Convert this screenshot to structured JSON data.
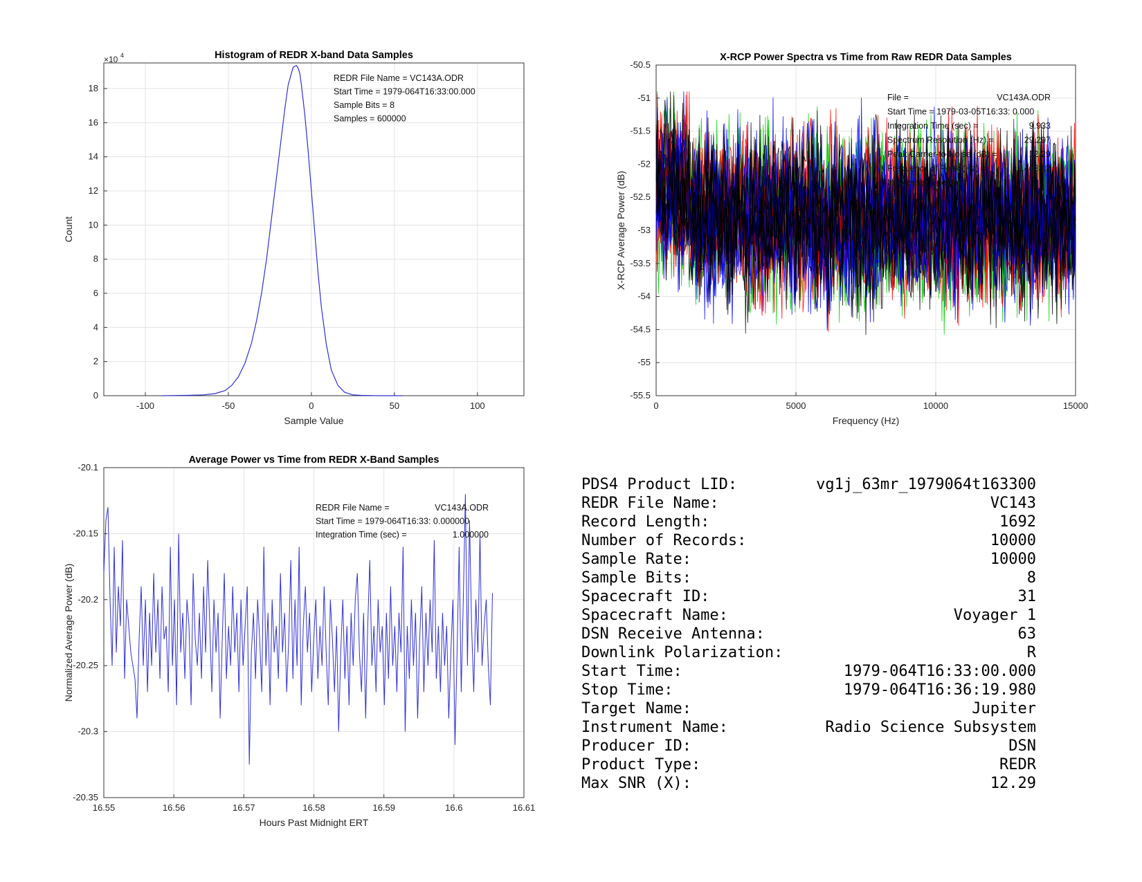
{
  "chart_data": [
    {
      "type": "line",
      "title": "Histogram of REDR X-band Data Samples",
      "xlabel": "Sample Value",
      "ylabel": "Count",
      "y_exponent_label": "×10",
      "y_exponent": "4",
      "xlim": [
        -125,
        128
      ],
      "ylim": [
        0,
        19.5
      ],
      "xticks": [
        -100,
        -50,
        0,
        50,
        100
      ],
      "yticks": [
        0,
        2,
        4,
        6,
        8,
        10,
        12,
        14,
        16,
        18
      ],
      "grid": true,
      "line_color": "#2f2fd0",
      "curve": {
        "x": [
          -90,
          -75,
          -65,
          -58,
          -52,
          -48,
          -44,
          -40,
          -36,
          -33,
          -30,
          -27,
          -24,
          -21,
          -18,
          -16,
          -14,
          -12,
          -11,
          -10,
          -9,
          -8,
          -7,
          -6,
          -4,
          -2,
          0,
          2,
          4,
          6,
          9,
          12,
          16,
          20,
          25,
          30,
          40,
          55
        ],
        "y": [
          0,
          0.02,
          0.05,
          0.12,
          0.3,
          0.6,
          1.1,
          1.9,
          3.1,
          4.4,
          6.0,
          8.0,
          10.4,
          12.8,
          15.2,
          16.8,
          18.2,
          18.9,
          19.25,
          19.3,
          19.35,
          19.2,
          18.9,
          18.2,
          16.5,
          14.4,
          12.0,
          9.6,
          7.2,
          5.2,
          3.0,
          1.5,
          0.6,
          0.2,
          0.05,
          0.02,
          0,
          0
        ]
      },
      "annotations": [
        "REDR File Name = VC143A.ODR",
        "Start Time = 1979-064T16:33:00.000",
        "Sample Bits = 8",
        "Samples = 600000"
      ]
    },
    {
      "type": "line",
      "title": "X-RCP Power Spectra vs Time from Raw REDR Data Samples",
      "xlabel": "Frequency (Hz)",
      "ylabel": "X-RCP Average Power (dB)",
      "xlim": [
        0,
        15000
      ],
      "ylim": [
        -55.5,
        -50.5
      ],
      "xticks": [
        0,
        5000,
        10000,
        15000
      ],
      "yticks": [
        -55.5,
        -55,
        -54.5,
        -54,
        -53.5,
        -53,
        -52.5,
        -52,
        -51.5,
        -51,
        -50.5
      ],
      "grid": true,
      "series": [
        {
          "color": "#00cc00"
        },
        {
          "color": "#ff0000"
        },
        {
          "color": "#0000ff"
        },
        {
          "color": "#000000"
        }
      ],
      "annotations": [
        {
          "label": "File =",
          "value": "VC143A.ODR"
        },
        {
          "label": "Start Time = 1979-03-05T16:33: 0.000",
          "value": ""
        },
        {
          "label": "Integration Time (sec) =",
          "value": "9.933"
        },
        {
          "label": "Spectrum Resolution (Hz) =",
          "value": "29.297"
        },
        {
          "label": "Peak Carrier-to-Noise (dB) =",
          "value": "12.29"
        },
        {
          "label": "  Frequency of Peak (Hz) =",
          "value": "14033.2"
        },
        {
          "label": "  In Average Spectrum",
          "value": ""
        }
      ]
    },
    {
      "type": "line",
      "title": "Average Power vs Time from REDR X-Band Samples",
      "xlabel": "Hours Past Midnight ERT",
      "ylabel": "Normalized Average Power (dB)",
      "xlim": [
        16.55,
        16.61
      ],
      "ylim": [
        -20.35,
        -20.1
      ],
      "xticks": [
        16.55,
        16.56,
        16.57,
        16.58,
        16.59,
        16.6,
        16.61
      ],
      "yticks": [
        -20.35,
        -20.3,
        -20.25,
        -20.2,
        -20.15,
        -20.1
      ],
      "grid": true,
      "line_color": "#2f2fd0",
      "series_x_start": 16.55,
      "series_x_end": 16.6055,
      "values": [
        -20.18,
        -20.14,
        -20.13,
        -20.2,
        -20.25,
        -20.16,
        -20.24,
        -20.19,
        -20.22,
        -20.155,
        -20.26,
        -20.2,
        -20.22,
        -20.24,
        -20.25,
        -20.26,
        -20.29,
        -20.23,
        -20.19,
        -20.25,
        -20.2,
        -20.27,
        -20.21,
        -20.25,
        -20.18,
        -20.24,
        -20.2,
        -20.26,
        -20.19,
        -20.23,
        -20.22,
        -20.27,
        -20.16,
        -20.25,
        -20.2,
        -20.28,
        -20.15,
        -20.24,
        -20.21,
        -20.26,
        -20.2,
        -20.22,
        -20.28,
        -20.18,
        -20.23,
        -20.25,
        -20.21,
        -20.26,
        -20.19,
        -20.24,
        -20.17,
        -20.22,
        -20.27,
        -20.2,
        -20.24,
        -20.21,
        -20.29,
        -20.23,
        -20.18,
        -20.26,
        -20.22,
        -20.25,
        -20.19,
        -20.24,
        -20.21,
        -20.27,
        -20.2,
        -20.25,
        -20.22,
        -20.19,
        -20.325,
        -20.24,
        -20.21,
        -20.26,
        -20.2,
        -20.23,
        -20.27,
        -20.16,
        -20.25,
        -20.21,
        -20.28,
        -20.2,
        -20.24,
        -20.22,
        -20.26,
        -20.18,
        -20.24,
        -20.21,
        -20.27,
        -20.23,
        -20.17,
        -20.26,
        -20.2,
        -20.25,
        -20.16,
        -20.28,
        -20.22,
        -20.19,
        -20.24,
        -20.21,
        -20.27,
        -20.23,
        -20.2,
        -20.26,
        -20.22,
        -20.25,
        -20.19,
        -20.24,
        -20.28,
        -20.2,
        -20.23,
        -20.27,
        -20.22,
        -20.3,
        -20.24,
        -20.2,
        -20.26,
        -20.22,
        -20.28,
        -20.21,
        -20.25,
        -20.2,
        -20.18,
        -20.24,
        -20.27,
        -20.21,
        -20.29,
        -20.22,
        -20.17,
        -20.25,
        -20.22,
        -20.27,
        -20.2,
        -20.24,
        -20.22,
        -20.28,
        -20.21,
        -20.26,
        -20.19,
        -20.25,
        -20.22,
        -20.27,
        -20.21,
        -20.24,
        -20.16,
        -20.3,
        -20.22,
        -20.26,
        -20.2,
        -20.25,
        -20.21,
        -20.29,
        -20.23,
        -20.19,
        -20.27,
        -20.21,
        -20.25,
        -20.2,
        -20.24,
        -20.155,
        -20.26,
        -20.22,
        -20.27,
        -20.21,
        -20.25,
        -20.22,
        -20.29,
        -20.24,
        -20.2,
        -20.31,
        -20.24,
        -20.16,
        -20.27,
        -20.2,
        -20.12,
        -20.25,
        -20.14,
        -20.22,
        -20.27,
        -20.2,
        -20.24,
        -20.15,
        -20.25,
        -20.22,
        -20.2,
        -20.25,
        -20.28,
        -20.195
      ],
      "annotations": [
        {
          "label": "REDR File Name =",
          "value": "VC143A.ODR"
        },
        {
          "label": "Start Time = 1979-064T16:33: 0.000000",
          "value": ""
        },
        {
          "label": "Integration Time (sec) =",
          "value": "1.000000"
        }
      ]
    },
    {
      "type": "table",
      "rows": [
        {
          "label": "PDS4 Product LID:",
          "value": "vg1j_63mr_1979064t163300"
        },
        {
          "label": "REDR File Name:",
          "value": "VC143"
        },
        {
          "label": "Record Length:",
          "value": "1692"
        },
        {
          "label": "Number of Records:",
          "value": "10000"
        },
        {
          "label": "Sample Rate:",
          "value": "10000"
        },
        {
          "label": "Sample Bits:",
          "value": "8"
        },
        {
          "label": "Spacecraft ID:",
          "value": "31"
        },
        {
          "label": "Spacecraft Name:",
          "value": "Voyager 1"
        },
        {
          "label": "DSN Receive Antenna:",
          "value": "63"
        },
        {
          "label": "Downlink Polarization:",
          "value": "R"
        },
        {
          "label": "Start Time:",
          "value": "1979-064T16:33:00.000"
        },
        {
          "label": "Stop Time:",
          "value": "1979-064T16:36:19.980"
        },
        {
          "label": "Target Name:",
          "value": "Jupiter"
        },
        {
          "label": "Instrument Name:",
          "value": "Radio Science Subsystem"
        },
        {
          "label": "Producer ID:",
          "value": "DSN"
        },
        {
          "label": "Product Type:",
          "value": "REDR"
        },
        {
          "label": "Max SNR (X):",
          "value": "12.29"
        }
      ]
    }
  ]
}
